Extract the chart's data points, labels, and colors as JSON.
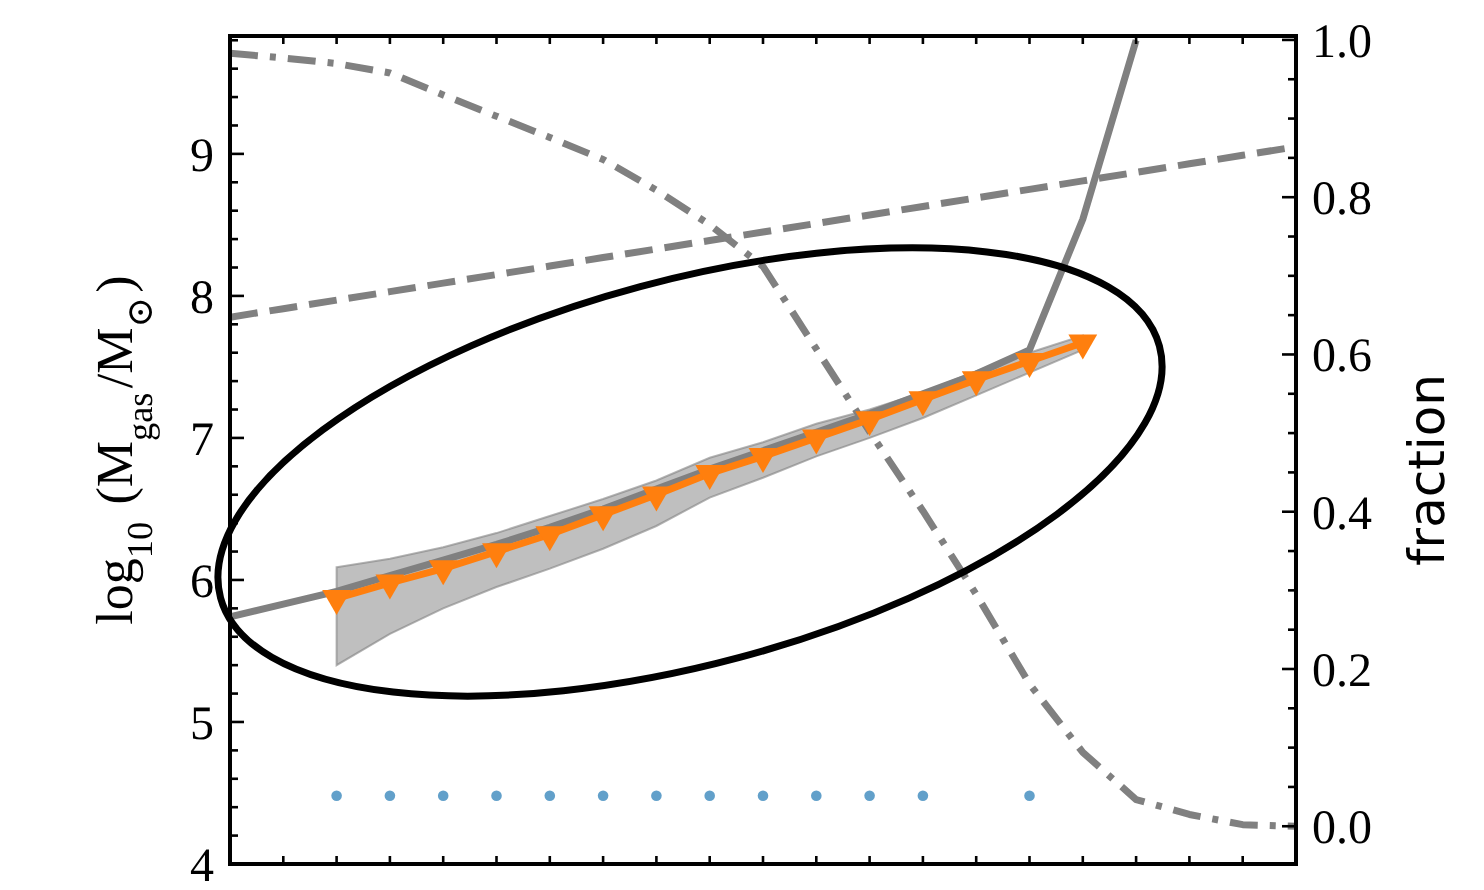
{
  "chart_data": {
    "type": "line",
    "ylabel": "log$_{10}$ (M$_{gas}$/M$_{⊙}$)",
    "y2label": "fraction",
    "categories": [
      null,
      null,
      null,
      null,
      null,
      null,
      null,
      null,
      null,
      null,
      null,
      null,
      null,
      null,
      null,
      null,
      null,
      null,
      null,
      null,
      null
    ],
    "ylim": [
      4,
      9.83
    ],
    "yticks": [
      4,
      {
        "value": 4.2,
        "label": null
      },
      {
        "value": 4.4,
        "label": null
      },
      {
        "value": 4.6,
        "label": null
      },
      {
        "value": 4.8,
        "label": null
      },
      5,
      {
        "value": 5.2,
        "label": null
      },
      {
        "value": 5.4,
        "label": null
      },
      {
        "value": 5.6,
        "label": null
      },
      {
        "value": 5.8,
        "label": null
      },
      6,
      {
        "value": 6.2,
        "label": null
      },
      {
        "value": 6.4,
        "label": null
      },
      {
        "value": 6.6,
        "label": null
      },
      {
        "value": 6.8,
        "label": null
      },
      7,
      {
        "value": 7.2,
        "label": null
      },
      {
        "value": 7.4,
        "label": null
      },
      {
        "value": 7.6,
        "label": null
      },
      {
        "value": 7.8,
        "label": null
      },
      8,
      {
        "value": 8.2,
        "label": null
      },
      {
        "value": 8.4,
        "label": null
      },
      {
        "value": 8.6,
        "label": null
      },
      {
        "value": 8.8,
        "label": null
      },
      9,
      {
        "value": 9.2,
        "label": null
      },
      {
        "value": 9.4,
        "label": null
      },
      {
        "value": 9.6,
        "label": null
      },
      {
        "value": 9.8,
        "label": null
      }
    ],
    "y2lim": [
      -0.048,
      1.005
    ],
    "y2ticks": [
      {
        "value": 0,
        "label": "0.0"
      },
      {
        "value": 0.05,
        "label": null
      },
      {
        "value": 0.1,
        "label": null
      },
      {
        "value": 0.15,
        "label": null
      },
      0.2,
      {
        "value": 0.25,
        "label": null
      },
      {
        "value": 0.3,
        "label": null
      },
      {
        "value": 0.35,
        "label": null
      },
      0.4,
      {
        "value": 0.45,
        "label": null
      },
      {
        "value": 0.5,
        "label": null
      },
      {
        "value": 0.55,
        "label": null
      },
      0.6,
      {
        "value": 0.65,
        "label": null
      },
      {
        "value": 0.7,
        "label": null
      },
      {
        "value": 0.75,
        "label": null
      },
      0.8,
      {
        "value": 0.85,
        "label": null
      },
      {
        "value": 0.9,
        "label": null
      },
      {
        "value": 0.95,
        "label": null
      },
      {
        "value": 1,
        "label": "1.0"
      }
    ],
    "series": [
      {
        "color": "#808080",
        "line_style": "dashed",
        "values": [
          7.85,
          7.91,
          7.97,
          8.03,
          8.09,
          8.15,
          8.21,
          8.27,
          8.33,
          8.39,
          8.45,
          8.51,
          8.57,
          8.63,
          8.69,
          8.75,
          8.81,
          8.87,
          8.93,
          8.99,
          9.05
        ]
      },
      {
        "color": "#808080",
        "line_style": "dashdot",
        "axis": "y2",
        "values": [
          0.983,
          0.977,
          0.97,
          0.958,
          0.93,
          0.903,
          0.876,
          0.848,
          0.809,
          0.765,
          0.712,
          0.607,
          0.502,
          0.401,
          0.295,
          0.181,
          0.094,
          0.034,
          0.015,
          0.002,
          0.0
        ]
      },
      {
        "color": "#808080",
        "line_style": "solid",
        "values": [
          5.74,
          5.83,
          5.92,
          6.03,
          6.14,
          6.25,
          6.37,
          6.5,
          6.64,
          6.78,
          6.91,
          7.04,
          7.17,
          7.31,
          7.45,
          7.62,
          8.54,
          9.8,
          null,
          null,
          null
        ],
        "lower": [
          null,
          null,
          5.4,
          5.62,
          5.8,
          5.95,
          6.08,
          6.22,
          6.38,
          6.58,
          6.72,
          6.87,
          7.0,
          7.14,
          7.3,
          7.46,
          7.62,
          null,
          null,
          null,
          null
        ],
        "upper": [
          null,
          null,
          6.09,
          6.15,
          6.23,
          6.33,
          6.45,
          6.57,
          6.7,
          6.86,
          6.97,
          7.1,
          7.2,
          7.32,
          7.47,
          7.6,
          7.72,
          null,
          null,
          null,
          null
        ]
      },
      {
        "color": "#ff7f0e",
        "line_style": "solid",
        "marker": "triangle",
        "values": [
          null,
          null,
          5.87,
          5.98,
          6.08,
          6.2,
          6.32,
          6.46,
          6.6,
          6.75,
          6.87,
          7.0,
          7.13,
          7.27,
          7.41,
          7.54,
          7.67,
          null,
          null,
          null,
          null
        ]
      },
      {
        "type": "scatter",
        "color": "#1f77b4",
        "marker": "circle",
        "values": [
          null,
          null,
          4.48,
          4.48,
          4.48,
          4.48,
          4.48,
          4.48,
          4.48,
          4.48,
          4.48,
          4.48,
          4.48,
          4.48,
          null,
          4.48,
          null,
          null,
          null,
          null,
          null
        ]
      }
    ]
  }
}
